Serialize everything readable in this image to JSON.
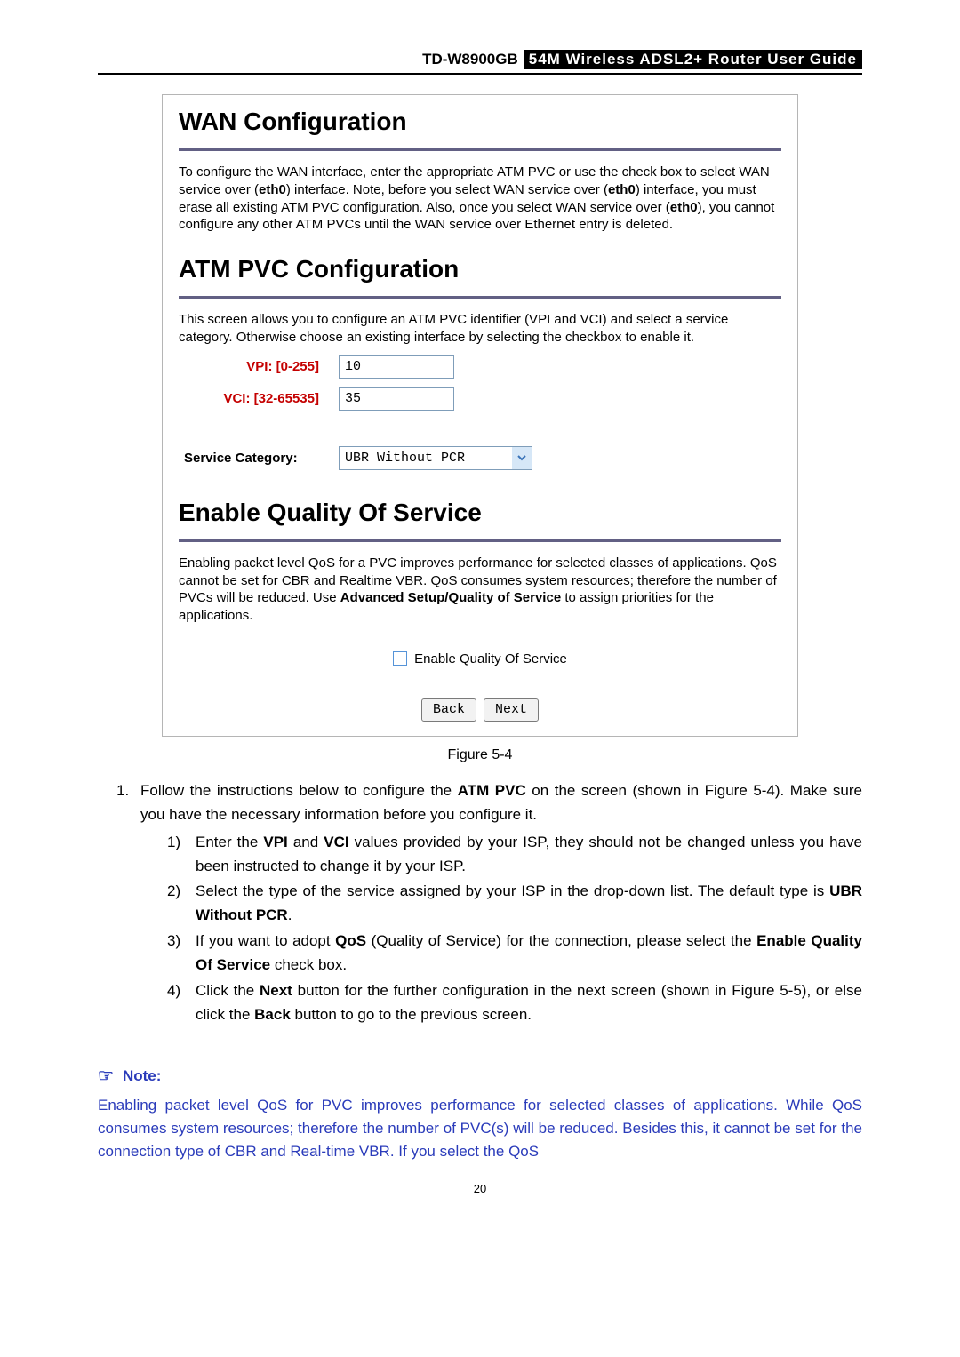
{
  "header": {
    "model": "TD-W8900GB",
    "title_rest": "54M  Wireless  ADSL2+  Router  User  Guide"
  },
  "screenshot": {
    "wan_config": {
      "title": "WAN Configuration",
      "text_parts": [
        "To configure the WAN interface, enter the appropriate ATM PVC or use the check box to select WAN service over (",
        "eth0",
        ") interface. Note, before you select WAN service over (",
        "eth0",
        ") interface, you must erase all existing ATM PVC configuration. Also, once you select WAN service over (",
        "eth0",
        "), you cannot configure any other ATM PVCs until the WAN service over Ethernet entry is deleted."
      ]
    },
    "atm_pvc": {
      "title": "ATM PVC Configuration",
      "text": "This screen allows you to configure an ATM PVC identifier (VPI and VCI) and select a service category. Otherwise choose an existing interface by selecting the checkbox to enable it.",
      "vpi_label": "VPI: [0-255]",
      "vpi_value": "10",
      "vci_label": "VCI: [32-65535]",
      "vci_value": "35",
      "service_category_label": "Service Category:",
      "service_category_value": "UBR Without PCR"
    },
    "qos": {
      "title": "Enable Quality Of Service",
      "text_parts": [
        "Enabling packet level QoS for a PVC improves performance for selected classes of applications.  QoS cannot be set for CBR and Realtime VBR.  QoS consumes system resources; therefore the number of PVCs will be reduced. Use ",
        "Advanced Setup/Quality of Service",
        " to assign priorities for the applications."
      ],
      "checkbox_label": "Enable Quality Of Service"
    },
    "buttons": {
      "back": "Back",
      "next": "Next"
    }
  },
  "figure_caption": "Figure 5-4",
  "instructions": {
    "outer_1_before": "Follow the instructions below to configure the ",
    "outer_1_bold": "ATM PVC",
    "outer_1_after": " on the screen (shown in Figure 5-4). Make sure you have the necessary information before you configure it.",
    "inner": [
      {
        "idx": "1)",
        "parts": [
          "Enter the ",
          "VPI",
          " and ",
          "VCI",
          " values provided by your ISP, they should not be changed unless you have been instructed to change it by your ISP."
        ]
      },
      {
        "idx": "2)",
        "parts": [
          "Select the type of the service assigned by your ISP in the drop-down list. The default type is ",
          "UBR Without PCR",
          "."
        ]
      },
      {
        "idx": "3)",
        "parts": [
          "If you want to adopt ",
          "QoS",
          " (Quality of Service) for the connection, please select the ",
          "Enable Quality Of Service",
          " check box."
        ]
      },
      {
        "idx": "4)",
        "parts": [
          "Click the ",
          "Next",
          " button for the further configuration in the next screen (shown in Figure 5-5), or else click the ",
          "Back",
          " button to go to the previous screen."
        ]
      }
    ]
  },
  "note": {
    "heading": "Note:",
    "text": "Enabling packet level QoS for PVC improves performance for selected classes of applications. While QoS consumes system resources; therefore the number of PVC(s) will be reduced. Besides this, it cannot be set for the connection type of CBR and Real-time VBR. If you select the QoS"
  },
  "page_number": "20"
}
